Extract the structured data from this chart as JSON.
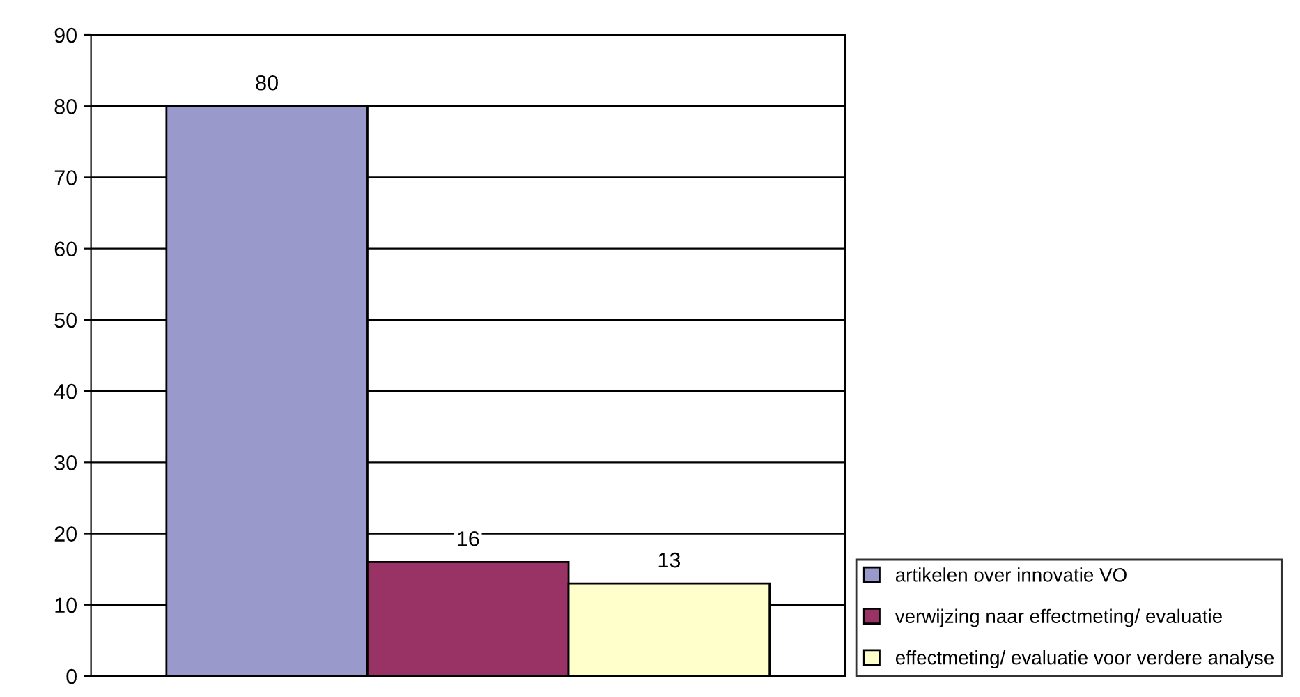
{
  "chart_data": {
    "type": "bar",
    "categories": [
      null
    ],
    "series": [
      {
        "name": "artikelen over innovatie VO",
        "color": "#9999cc",
        "values": [
          80
        ]
      },
      {
        "name": "verwijzing naar effectmeting/ evaluatie",
        "color": "#993366",
        "values": [
          16
        ]
      },
      {
        "name": "effectmeting/ evaluatie voor verdere analyse",
        "color": "#ffffcc",
        "values": [
          13
        ]
      }
    ],
    "ylim": [
      0,
      90
    ],
    "yticks": [
      0,
      10,
      20,
      30,
      40,
      50,
      60,
      70,
      80,
      90
    ],
    "grid": "y",
    "legend": "right",
    "data_labels": true
  }
}
